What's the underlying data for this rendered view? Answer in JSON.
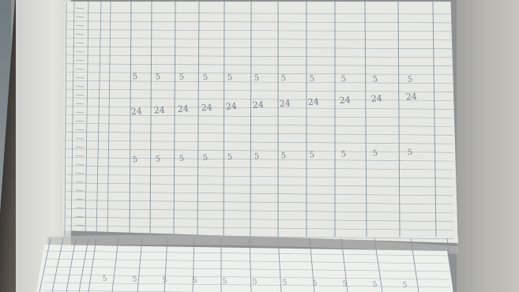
{
  "page_title": "",
  "upper_page": {
    "entries": [
      {
        "row": "b",
        "values": [
          "5",
          "5",
          "5",
          "5",
          "5",
          "5",
          "5",
          "5",
          "5",
          "5",
          "5"
        ]
      },
      {
        "row": "a",
        "values": [
          "24",
          "24",
          "24",
          "24",
          "24",
          "24",
          "24",
          "24",
          "24",
          "24",
          "24"
        ]
      },
      {
        "row": "c",
        "values": [
          "5",
          "5",
          "5",
          "5",
          "5",
          "5",
          "5",
          "5",
          "5",
          "5",
          "5"
        ]
      }
    ]
  },
  "lower_page": {
    "entries": [
      {
        "row": "a",
        "values": [
          "5",
          "5",
          "5",
          "5",
          "5",
          "5",
          "5",
          "5",
          "5",
          "5",
          "5"
        ]
      }
    ]
  },
  "colors": {
    "paper": "#e7e8e4",
    "rule_line": "#8f98a1",
    "ink": "#5b6470",
    "background": "#8f9091"
  }
}
